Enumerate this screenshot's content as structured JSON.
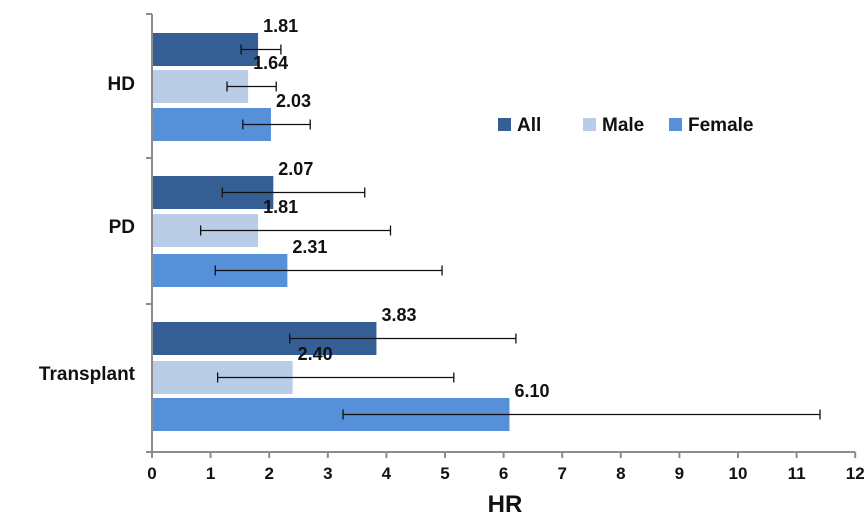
{
  "chart_data": {
    "type": "bar",
    "orientation": "horizontal",
    "categories": [
      "HD",
      "PD",
      "Transplant"
    ],
    "series": [
      {
        "name": "All",
        "color": "#345e94",
        "values": [
          1.81,
          2.07,
          3.83
        ],
        "err_low": [
          1.52,
          1.2,
          2.35
        ],
        "err_high": [
          2.2,
          3.63,
          6.21
        ]
      },
      {
        "name": "Male",
        "color": "#b9cde6",
        "values": [
          1.64,
          1.81,
          2.4
        ],
        "err_low": [
          1.28,
          0.83,
          1.12
        ],
        "err_high": [
          2.12,
          4.07,
          5.15
        ]
      },
      {
        "name": "Female",
        "color": "#5590d9",
        "values": [
          2.03,
          2.31,
          6.1
        ],
        "err_low": [
          1.55,
          1.08,
          3.26
        ],
        "err_high": [
          2.7,
          4.95,
          11.4
        ]
      }
    ],
    "value_labels": [
      [
        "1.81",
        "2.07",
        "3.83"
      ],
      [
        "1.64",
        "1.81",
        "2.40"
      ],
      [
        "2.03",
        "2.31",
        "6.10"
      ]
    ],
    "xlabel": "HR",
    "ylabel": "",
    "xlim": [
      0,
      12
    ],
    "x_ticks": [
      "0",
      "1",
      "2",
      "3",
      "4",
      "5",
      "6",
      "7",
      "8",
      "9",
      "10",
      "11",
      "12"
    ],
    "legend": {
      "position": "right",
      "entries": [
        "All",
        "Male",
        "Female"
      ]
    },
    "grid": false
  }
}
